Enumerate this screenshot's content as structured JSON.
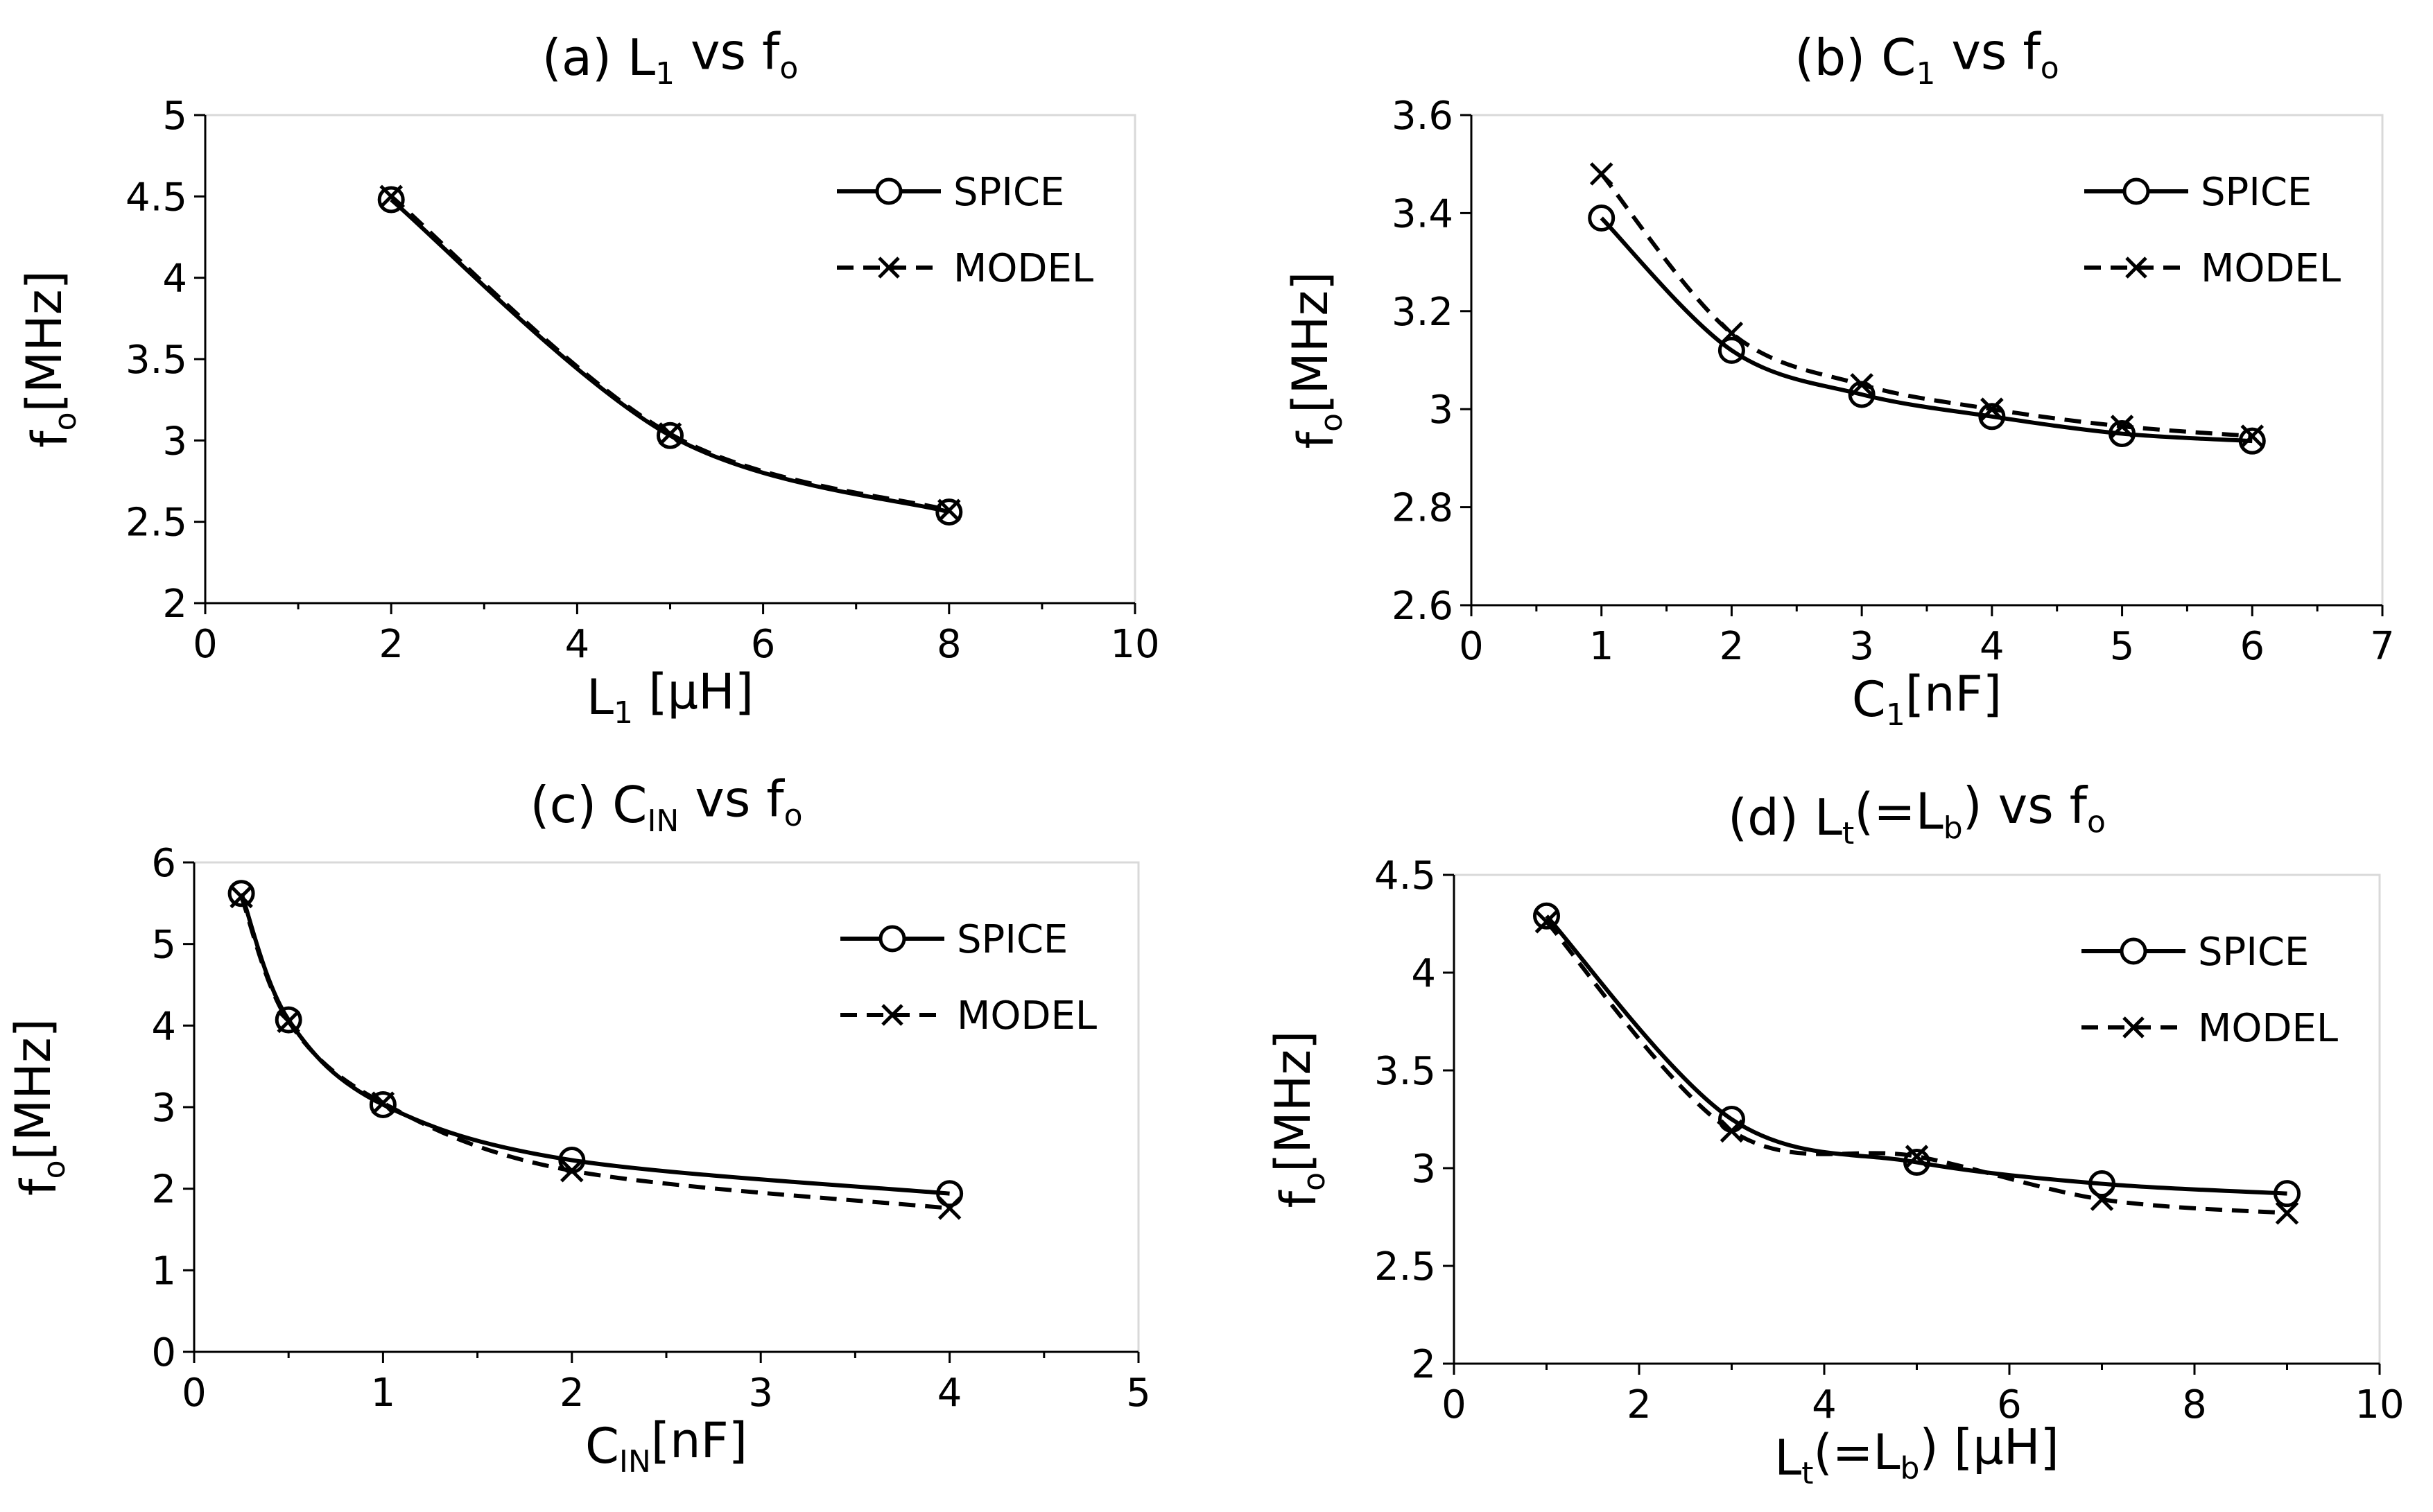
{
  "chart_data": [
    {
      "id": "a",
      "type": "line",
      "title": {
        "main": "(a) L",
        "sub": "1",
        "tail": " vs f",
        "tail_sub": "o"
      },
      "xlabel": {
        "main": "L",
        "sub": "1",
        "tail": " [μH]"
      },
      "ylabel": {
        "main": "f",
        "sub": "o",
        "tail": "[MHz]"
      },
      "xlim": [
        0,
        10
      ],
      "ylim": [
        2,
        5
      ],
      "xticks": [
        0,
        2,
        4,
        6,
        8,
        10
      ],
      "xtick_labels": [
        "0",
        "2",
        "4",
        "6",
        "8",
        "10"
      ],
      "yticks": [
        2,
        2.5,
        3,
        3.5,
        4,
        4.5,
        5
      ],
      "ytick_labels": [
        "2",
        "2.5",
        "3",
        "3.5",
        "4",
        "4.5",
        "5"
      ],
      "legend_position": "top-right",
      "series": [
        {
          "name": "SPICE",
          "style": "solid",
          "marker": "circle",
          "x": [
            2,
            5,
            8
          ],
          "y": [
            4.48,
            3.03,
            2.56
          ]
        },
        {
          "name": "MODEL",
          "style": "dashed",
          "marker": "cross",
          "x": [
            2,
            5,
            8
          ],
          "y": [
            4.5,
            3.04,
            2.57
          ]
        }
      ]
    },
    {
      "id": "b",
      "type": "line",
      "title": {
        "main": "(b) C",
        "sub": "1",
        "tail": " vs f",
        "tail_sub": "o"
      },
      "xlabel": {
        "main": "C",
        "sub": "1",
        "tail": "[nF]"
      },
      "ylabel": {
        "main": "f",
        "sub": "o",
        "tail": "[MHz]"
      },
      "xlim": [
        0,
        7
      ],
      "ylim": [
        2.6,
        3.6
      ],
      "xticks": [
        0,
        1,
        2,
        3,
        4,
        5,
        6,
        7
      ],
      "xtick_labels": [
        "0",
        "1",
        "2",
        "3",
        "4",
        "5",
        "6",
        "7"
      ],
      "yticks": [
        2.6,
        2.8,
        3.0,
        3.2,
        3.4,
        3.6
      ],
      "ytick_labels": [
        "2.6",
        "2.8",
        "3",
        "3.2",
        "3.4",
        "3.6"
      ],
      "legend_position": "top-right",
      "series": [
        {
          "name": "SPICE",
          "style": "solid",
          "marker": "circle",
          "x": [
            1,
            2,
            3,
            4,
            5,
            6
          ],
          "y": [
            3.39,
            3.12,
            3.03,
            2.985,
            2.95,
            2.935
          ]
        },
        {
          "name": "MODEL",
          "style": "dashed",
          "marker": "cross",
          "x": [
            1,
            2,
            3,
            4,
            5,
            6
          ],
          "y": [
            3.48,
            3.155,
            3.05,
            3.0,
            2.965,
            2.945
          ]
        }
      ]
    },
    {
      "id": "c",
      "type": "line",
      "title": {
        "main": "(c) C",
        "sub": "IN",
        "tail": " vs f",
        "tail_sub": "o"
      },
      "xlabel": {
        "main": "C",
        "sub": "IN",
        "tail": "[nF]"
      },
      "ylabel": {
        "main": "f",
        "sub": "o",
        "tail": "[MHz]"
      },
      "xlim": [
        0,
        5
      ],
      "ylim": [
        0,
        6
      ],
      "xticks": [
        0,
        1,
        2,
        3,
        4,
        5
      ],
      "xtick_labels": [
        "0",
        "1",
        "2",
        "3",
        "4",
        "5"
      ],
      "yticks": [
        0,
        1,
        2,
        3,
        4,
        5,
        6
      ],
      "ytick_labels": [
        "0",
        "1",
        "2",
        "3",
        "4",
        "5",
        "6"
      ],
      "legend_position": "top-right",
      "series": [
        {
          "name": "SPICE",
          "style": "solid",
          "marker": "circle",
          "x": [
            0.25,
            0.5,
            1,
            2,
            4
          ],
          "y": [
            5.62,
            4.07,
            3.03,
            2.35,
            1.94
          ]
        },
        {
          "name": "MODEL",
          "style": "dashed",
          "marker": "cross",
          "x": [
            0.25,
            0.5,
            1,
            2,
            4
          ],
          "y": [
            5.58,
            4.05,
            3.05,
            2.22,
            1.76
          ]
        }
      ]
    },
    {
      "id": "d",
      "type": "line",
      "title": {
        "main": "(d) L",
        "sub": "t",
        "tail": "(=L",
        "tail_sub": "b",
        "tail2": ") vs f",
        "tail2_sub": "o"
      },
      "xlabel": {
        "main": "L",
        "sub": "t",
        "tail": "(=L",
        "tail_sub": "b",
        "tail2": ") [μH]"
      },
      "ylabel": {
        "main": "f",
        "sub": "o",
        "tail": "[MHz]"
      },
      "xlim": [
        0,
        10
      ],
      "ylim": [
        2,
        4.5
      ],
      "xticks": [
        0,
        2,
        4,
        6,
        8,
        10
      ],
      "xtick_labels": [
        "0",
        "2",
        "4",
        "6",
        "8",
        "10"
      ],
      "yticks": [
        2,
        2.5,
        3,
        3.5,
        4,
        4.5
      ],
      "ytick_labels": [
        "2",
        "2.5",
        "3",
        "3.5",
        "4",
        "4.5"
      ],
      "legend_position": "top-right",
      "series": [
        {
          "name": "SPICE",
          "style": "solid",
          "marker": "circle",
          "x": [
            1,
            3,
            5,
            7,
            9
          ],
          "y": [
            4.29,
            3.25,
            3.03,
            2.92,
            2.87
          ]
        },
        {
          "name": "MODEL",
          "style": "dashed",
          "marker": "cross",
          "x": [
            1,
            3,
            5,
            7,
            9
          ],
          "y": [
            4.26,
            3.19,
            3.06,
            2.84,
            2.77
          ]
        }
      ]
    }
  ]
}
